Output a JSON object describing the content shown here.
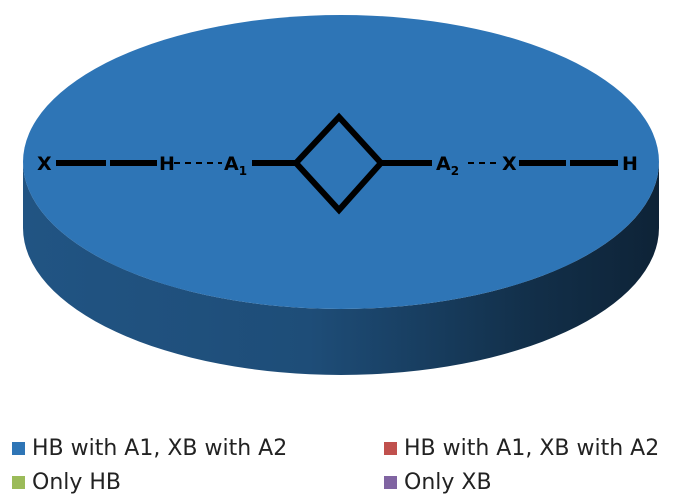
{
  "chart_data": {
    "type": "pie",
    "style": "3d",
    "title": "",
    "slices": [
      {
        "label": "HB with A1, XB with A2",
        "value": 100,
        "color": "#2E75B6"
      },
      {
        "label": "HB with A1, XB with A2",
        "value": 0,
        "color": "#C0504D"
      },
      {
        "label": "Only HB",
        "value": 0,
        "color": "#9BBB59"
      },
      {
        "label": "Only XB",
        "value": 0,
        "color": "#8064A2"
      }
    ],
    "legend_position": "bottom"
  },
  "annotation": {
    "left_x": "X",
    "left_h": "H",
    "a1_base": "A",
    "a1_sub": "1",
    "a2_base": "A",
    "a2_sub": "2",
    "right_x": "X",
    "right_h": "H"
  }
}
